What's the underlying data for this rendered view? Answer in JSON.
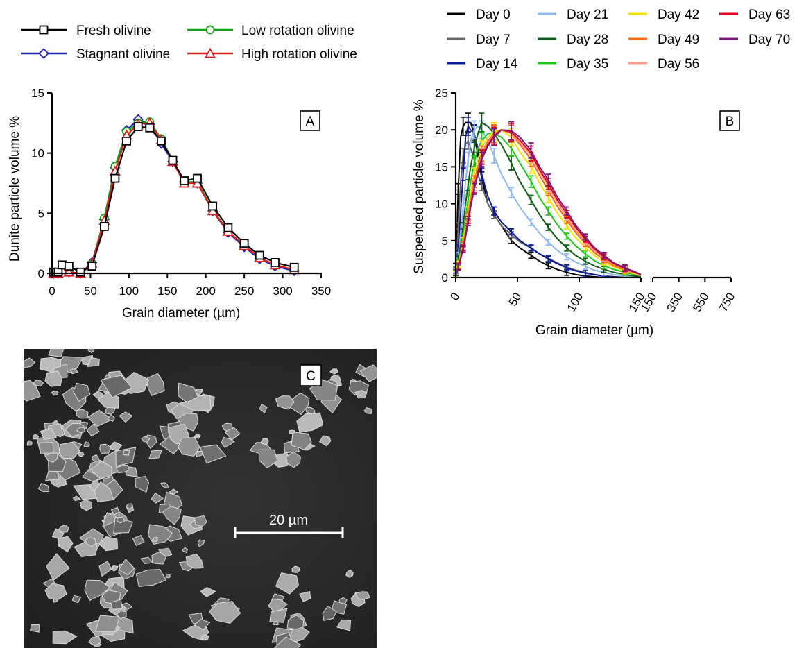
{
  "panels": {
    "a_label": "A",
    "b_label": "B",
    "c_label": "C"
  },
  "legend_a": [
    {
      "name": "Fresh olivine",
      "color": "#000000",
      "marker": "square"
    },
    {
      "name": "Stagnant olivine",
      "color": "#1f1fb4",
      "marker": "diamond"
    },
    {
      "name": "Low rotation olivine",
      "color": "#12a012",
      "marker": "circle"
    },
    {
      "name": "High rotation olivine",
      "color": "#e01b1b",
      "marker": "triangle"
    }
  ],
  "legend_b": [
    {
      "name": "Day 0",
      "color": "#000000"
    },
    {
      "name": "Day 7",
      "color": "#666666"
    },
    {
      "name": "Day 14",
      "color": "#0a1a96"
    },
    {
      "name": "Day 21",
      "color": "#8fb8ef"
    },
    {
      "name": "Day 28",
      "color": "#0f5a14"
    },
    {
      "name": "Day 35",
      "color": "#22c41f"
    },
    {
      "name": "Day 42",
      "color": "#f2e000"
    },
    {
      "name": "Day 49",
      "color": "#ff6a10"
    },
    {
      "name": "Day 56",
      "color": "#ff9a88"
    },
    {
      "name": "Day 63",
      "color": "#e3001b"
    },
    {
      "name": "Day 70",
      "color": "#7a1a7a"
    }
  ],
  "sem": {
    "scale_bar_label": "20 µm"
  },
  "chart_data": [
    {
      "type": "line",
      "panel": "A",
      "xlabel": "Grain diameter (µm)",
      "ylabel": "Dunite particle volume %",
      "xlim": [
        0,
        350
      ],
      "ylim": [
        0,
        15
      ],
      "x_ticks": [
        0,
        50,
        100,
        150,
        200,
        250,
        300,
        350
      ],
      "y_ticks": [
        0,
        5,
        10,
        15
      ],
      "x": [
        2,
        8,
        13,
        22,
        37,
        52,
        68,
        82,
        97,
        112,
        127,
        142,
        157,
        172,
        189,
        209,
        229,
        250,
        270,
        290,
        315
      ],
      "series": [
        {
          "name": "Fresh olivine",
          "values": [
            0.1,
            0.1,
            0.7,
            0.6,
            0.1,
            0.6,
            3.9,
            7.9,
            11.0,
            12.2,
            12.1,
            11.0,
            9.4,
            7.7,
            7.9,
            5.6,
            3.8,
            2.5,
            1.5,
            0.9,
            0.5
          ]
        },
        {
          "name": "Stagnant olivine",
          "values": [
            0.0,
            0.0,
            0.3,
            0.1,
            0.0,
            0.9,
            4.5,
            8.8,
            11.9,
            12.8,
            12.4,
            10.8,
            9.3,
            7.6,
            7.5,
            5.2,
            3.4,
            2.2,
            1.2,
            0.6,
            0.2
          ]
        },
        {
          "name": "Low rotation olivine",
          "values": [
            0.0,
            0.0,
            0.3,
            0.1,
            0.0,
            0.8,
            4.6,
            8.9,
            11.8,
            12.5,
            12.6,
            11.2,
            9.4,
            7.6,
            7.6,
            5.3,
            3.5,
            2.3,
            1.3,
            0.7,
            0.3
          ]
        },
        {
          "name": "High rotation olivine",
          "values": [
            0.0,
            0.0,
            0.3,
            0.1,
            0.0,
            0.8,
            4.4,
            8.5,
            11.5,
            12.4,
            12.5,
            11.1,
            9.3,
            7.5,
            7.5,
            5.2,
            3.5,
            2.3,
            1.3,
            0.7,
            0.3
          ]
        }
      ]
    },
    {
      "type": "line",
      "panel": "B",
      "xlabel": "Grain diameter (µm)",
      "ylabel": "Suspended particle volume %",
      "xlim": [
        0,
        150
      ],
      "ylim": [
        0,
        25
      ],
      "x_ticks": [
        0,
        50,
        100,
        150
      ],
      "x_ticks_broken": [
        150,
        350,
        550,
        750
      ],
      "y_ticks": [
        0,
        5,
        10,
        15,
        20,
        25
      ],
      "x": [
        0,
        1,
        2,
        4,
        6,
        8,
        10,
        12,
        15,
        18,
        21,
        26,
        31,
        37,
        45,
        52,
        61,
        68,
        75,
        82,
        90,
        97,
        105,
        112,
        120,
        128,
        137,
        145,
        150
      ],
      "series": [
        {
          "name": "Day 0",
          "values": [
            1.5,
            6,
            12,
            19,
            20.5,
            21,
            21,
            21,
            19.5,
            16.5,
            13.5,
            10,
            8.5,
            7,
            5,
            4,
            3,
            2.2,
            1.6,
            1.1,
            0.7,
            0.4,
            0.2,
            0.1,
            0.0,
            0.0,
            0.0,
            0.0,
            0.0
          ]
        },
        {
          "name": "Day 7",
          "values": [
            1.0,
            3,
            7,
            13,
            16.5,
            18,
            18.5,
            17.5,
            16,
            14,
            12.5,
            10,
            8.5,
            7,
            5.8,
            4.8,
            4,
            3.2,
            2.6,
            2,
            1.4,
            1.0,
            0.7,
            0.4,
            0.2,
            0.1,
            0.0,
            0.0,
            0.0
          ]
        },
        {
          "name": "Day 14",
          "values": [
            0.8,
            2,
            4,
            9,
            14,
            19,
            20.5,
            20,
            19.5,
            17.5,
            14,
            11,
            9,
            7.5,
            6.2,
            5,
            4,
            3.2,
            2.5,
            1.9,
            1.3,
            0.9,
            0.6,
            0.4,
            0.2,
            0.1,
            0.0,
            0.0,
            0.0
          ]
        },
        {
          "name": "Day 21",
          "values": [
            0.8,
            1.5,
            3,
            6,
            9.5,
            13,
            16,
            18.5,
            20,
            20.5,
            20,
            18.5,
            16.5,
            14,
            11.5,
            9.5,
            7.5,
            6,
            4.8,
            3.7,
            2.8,
            2.1,
            1.5,
            1.0,
            0.7,
            0.4,
            0.2,
            0.1,
            0.0
          ]
        },
        {
          "name": "Day 28",
          "values": [
            0.6,
            1.2,
            2.5,
            4.5,
            7,
            10,
            12.5,
            15,
            17.5,
            19.5,
            21,
            20.5,
            19.5,
            18,
            15.5,
            13,
            10.5,
            8.5,
            6.8,
            5.3,
            4,
            3,
            2.2,
            1.6,
            1.1,
            0.7,
            0.4,
            0.2,
            0.1
          ]
        },
        {
          "name": "Day 35",
          "values": [
            0.5,
            1,
            2,
            3.5,
            5.5,
            8,
            10.5,
            13,
            15.5,
            17.5,
            18.5,
            19.5,
            19.5,
            19,
            17.5,
            15.5,
            13,
            10.8,
            9,
            7.2,
            5.6,
            4.3,
            3.2,
            2.3,
            1.6,
            1.1,
            0.7,
            0.4,
            0.2
          ]
        },
        {
          "name": "Day 42",
          "values": [
            0.5,
            1,
            1.8,
            3.2,
            5,
            7,
            9,
            11.5,
            14,
            16,
            17.5,
            19,
            19.8,
            20,
            19,
            17,
            15,
            12.8,
            10.8,
            8.8,
            7,
            5.4,
            4.1,
            3,
            2.1,
            1.4,
            0.9,
            0.5,
            0.3
          ]
        },
        {
          "name": "Day 49",
          "values": [
            0.4,
            0.9,
            1.6,
            2.9,
            4.5,
            6.3,
            8.3,
            10.5,
            13,
            15,
            16.8,
            18.5,
            19.5,
            20,
            19.5,
            18,
            16,
            13.8,
            11.8,
            9.7,
            7.8,
            6.1,
            4.6,
            3.4,
            2.4,
            1.6,
            1.0,
            0.6,
            0.3
          ]
        },
        {
          "name": "Day 56",
          "values": [
            0.4,
            0.8,
            1.5,
            2.7,
            4.2,
            6,
            8,
            10,
            12.5,
            14.5,
            16.5,
            18.2,
            19.3,
            20,
            19.6,
            18.3,
            16.5,
            14.3,
            12.3,
            10.2,
            8.2,
            6.4,
            4.9,
            3.6,
            2.6,
            1.8,
            1.1,
            0.6,
            0.3
          ]
        },
        {
          "name": "Day 63",
          "values": [
            0.4,
            0.8,
            1.5,
            2.6,
            4,
            5.8,
            7.8,
            9.8,
            12.2,
            14.3,
            16.3,
            18,
            19.2,
            20,
            19.7,
            18.6,
            16.8,
            14.6,
            12.7,
            10.6,
            8.6,
            6.8,
            5.2,
            3.9,
            2.8,
            1.9,
            1.2,
            0.7,
            0.4
          ]
        },
        {
          "name": "Day 70",
          "values": [
            0.3,
            0.7,
            1.4,
            2.5,
            3.8,
            5.5,
            7.5,
            9.5,
            12,
            14,
            16,
            17.8,
            19,
            20,
            19.9,
            19,
            17.2,
            15,
            13.2,
            11,
            9,
            7.1,
            5.5,
            4.1,
            3.0,
            2.0,
            1.3,
            0.8,
            0.4
          ]
        }
      ]
    }
  ]
}
